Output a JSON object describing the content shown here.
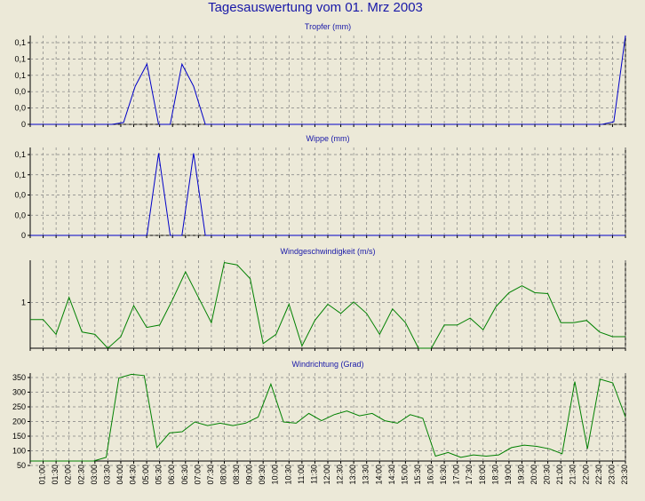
{
  "window_title": "Tagesauswertung vom 01. Mrz 2003",
  "colors": {
    "background": "#ECE9D8",
    "title": "#1818A8",
    "rain_series": "#0000C8",
    "wind_series": "#008000",
    "grid": "#808080"
  },
  "x_labels": [
    "01:00",
    "01:30",
    "02:00",
    "02:30",
    "03:00",
    "03:30",
    "04:00",
    "04:30",
    "05:00",
    "05:30",
    "06:00",
    "06:30",
    "07:00",
    "07:30",
    "08:00",
    "08:30",
    "09:00",
    "09:30",
    "10:00",
    "10:30",
    "11:00",
    "11:30",
    "12:00",
    "12:30",
    "13:00",
    "13:30",
    "14:00",
    "14:30",
    "15:00",
    "15:30",
    "16:00",
    "16:30",
    "17:00",
    "17:30",
    "18:00",
    "18:30",
    "19:00",
    "19:30",
    "20:00",
    "20:30",
    "21:00",
    "21:30",
    "22:00",
    "22:30",
    "23:00",
    "23:30"
  ],
  "chart_data": [
    {
      "type": "line",
      "title": "Tropfer (mm)",
      "ytick_labels": [
        "0,1",
        "0,1",
        "0,1",
        "0,0",
        "0,0",
        "0"
      ],
      "ylim": [
        0,
        0.14
      ],
      "grid": true,
      "series": [
        {
          "values": [
            0,
            0,
            0,
            0,
            0,
            0,
            0,
            0,
            0.003,
            0.06,
            0.095,
            0,
            0,
            0.095,
            0.06,
            0,
            0,
            0,
            0,
            0,
            0,
            0,
            0,
            0,
            0,
            0,
            0,
            0,
            0,
            0,
            0,
            0,
            0,
            0,
            0,
            0,
            0,
            0,
            0,
            0,
            0,
            0,
            0,
            0,
            0,
            0,
            0,
            0,
            0,
            0,
            0.004,
            0.14
          ]
        }
      ]
    },
    {
      "type": "line",
      "title": "Wippe (mm)",
      "ytick_labels": [
        "0,1",
        "0,1",
        "0,0",
        "0,0",
        "0"
      ],
      "ylim": [
        0,
        0.15
      ],
      "grid": true,
      "series": [
        {
          "values": [
            0,
            0,
            0,
            0,
            0,
            0,
            0,
            0,
            0,
            0,
            0,
            0.14,
            0,
            0,
            0.14,
            0,
            0,
            0,
            0,
            0,
            0,
            0,
            0,
            0,
            0,
            0,
            0,
            0,
            0,
            0,
            0,
            0,
            0,
            0,
            0,
            0,
            0,
            0,
            0,
            0,
            0,
            0,
            0,
            0,
            0,
            0,
            0,
            0,
            0,
            0,
            0,
            0
          ]
        }
      ]
    },
    {
      "type": "line",
      "title": "Windgeschwindigkeit (m/s)",
      "ytick_labels": [
        "1"
      ],
      "ylim": [
        0,
        1.9
      ],
      "grid": true,
      "series": [
        {
          "values": [
            0.62,
            0.62,
            0.3,
            1.1,
            0.35,
            0.3,
            0,
            0.25,
            0.92,
            0.45,
            0.5,
            1.05,
            1.65,
            1.1,
            0.55,
            1.85,
            1.8,
            1.5,
            0.1,
            0.3,
            0.95,
            0.05,
            0.6,
            0.95,
            0.75,
            1.0,
            0.75,
            0.3,
            0.85,
            0.55,
            0,
            0,
            0.5,
            0.5,
            0.65,
            0.4,
            0.9,
            1.2,
            1.35,
            1.2,
            1.18,
            0.55,
            0.55,
            0.6,
            0.35,
            0.25,
            0.25
          ]
        }
      ]
    },
    {
      "type": "line",
      "title": "Windrichtung (Grad)",
      "ytick_labels": [
        "350",
        "300",
        "250",
        "200",
        "150",
        "100",
        "50"
      ],
      "ylim": [
        0,
        360
      ],
      "grid": true,
      "series": [
        {
          "values": [
            0,
            0,
            0,
            0,
            0,
            0,
            15,
            340,
            355,
            350,
            55,
            115,
            120,
            160,
            145,
            155,
            145,
            155,
            180,
            315,
            160,
            155,
            195,
            165,
            190,
            205,
            185,
            195,
            165,
            155,
            190,
            175,
            20,
            35,
            15,
            25,
            20,
            25,
            55,
            65,
            60,
            50,
            30,
            325,
            50,
            335,
            320,
            180
          ]
        }
      ]
    }
  ]
}
